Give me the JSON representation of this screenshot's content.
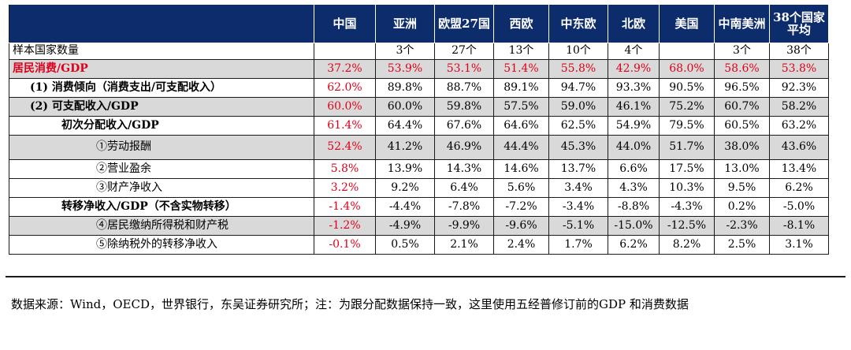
{
  "table": {
    "headers": [
      "中国",
      "亚洲",
      "欧盟27国",
      "西欧",
      "中东欧",
      "北欧",
      "美国",
      "中南美洲",
      "38个国家平均"
    ],
    "rows": [
      {
        "label": "样本国家数量",
        "values": [
          "",
          "3个",
          "27个",
          "13个",
          "10个",
          "4个",
          "",
          "3个",
          "38个"
        ],
        "shade": false,
        "red_label": false,
        "red_china": false,
        "bold": false,
        "indent": 0
      },
      {
        "label": "居民消费/GDP",
        "values": [
          "37.2%",
          "53.9%",
          "53.1%",
          "51.4%",
          "55.8%",
          "42.9%",
          "68.0%",
          "58.6%",
          "53.8%"
        ],
        "shade": true,
        "red_label": true,
        "red_all": true,
        "bold": true,
        "indent": 0
      },
      {
        "label": "(1) 消费倾向（消费支出/可支配收入）",
        "values": [
          "62.0%",
          "89.8%",
          "88.7%",
          "89.1%",
          "94.7%",
          "93.3%",
          "90.5%",
          "96.5%",
          "92.3%"
        ],
        "shade": false,
        "red_china": true,
        "bold": true,
        "indent": 1
      },
      {
        "label": "(2) 可支配收入/GDP",
        "values": [
          "60.0%",
          "60.0%",
          "59.8%",
          "57.5%",
          "59.0%",
          "46.1%",
          "75.2%",
          "60.7%",
          "58.2%"
        ],
        "shade": true,
        "red_china": true,
        "bold": true,
        "indent": 1
      },
      {
        "label": "初次分配收入/GDP",
        "values": [
          "61.4%",
          "64.4%",
          "67.6%",
          "64.6%",
          "62.5%",
          "54.9%",
          "79.5%",
          "60.5%",
          "63.2%"
        ],
        "shade": false,
        "red_china": true,
        "bold": true,
        "indent": 2
      },
      {
        "label": "①劳动报酬",
        "values": [
          "52.4%",
          "41.2%",
          "46.9%",
          "44.4%",
          "45.3%",
          "44.0%",
          "51.7%",
          "38.0%",
          "43.6%"
        ],
        "shade": true,
        "red_china": true,
        "bold": false,
        "indent": 3,
        "tall": true
      },
      {
        "label": "②营业盈余",
        "values": [
          "5.8%",
          "13.9%",
          "14.3%",
          "14.6%",
          "13.7%",
          "6.6%",
          "17.5%",
          "13.0%",
          "13.4%"
        ],
        "shade": false,
        "red_china": true,
        "bold": false,
        "indent": 3
      },
      {
        "label": "③财产净收入",
        "values": [
          "3.2%",
          "9.2%",
          "6.4%",
          "5.6%",
          "3.4%",
          "4.3%",
          "10.3%",
          "9.5%",
          "6.2%"
        ],
        "shade": false,
        "red_china": true,
        "bold": false,
        "indent": 3
      },
      {
        "label": "转移净收入/GDP（不含实物转移）",
        "values": [
          "-1.4%",
          "-4.4%",
          "-7.8%",
          "-7.2%",
          "-3.4%",
          "-8.8%",
          "-4.3%",
          "0.2%",
          "-5.0%"
        ],
        "shade": false,
        "red_china": true,
        "bold": true,
        "indent": 2
      },
      {
        "label": "④居民缴纳所得税和财产税",
        "values": [
          "-1.2%",
          "-4.9%",
          "-9.9%",
          "-9.6%",
          "-5.1%",
          "-15.0%",
          "-12.5%",
          "-2.3%",
          "-8.1%"
        ],
        "shade": true,
        "red_china": true,
        "bold": false,
        "indent": 3
      },
      {
        "label": "⑤除纳税外的转移净收入",
        "values": [
          "-0.1%",
          "0.5%",
          "2.1%",
          "2.4%",
          "1.7%",
          "6.2%",
          "8.2%",
          "2.5%",
          "3.1%"
        ],
        "shade": false,
        "red_china": true,
        "bold": false,
        "indent": 3
      }
    ]
  },
  "footnote": "数据来源：Wind，OECD，世界银行，东吴证券研究所；注：为跟分配数据保持一致，这里使用五经普修订前的GDP 和消费数据",
  "colors": {
    "header_bg": "#0d2c6b",
    "highlight_red": "#e0001b",
    "shade": "#d9d9d9"
  }
}
